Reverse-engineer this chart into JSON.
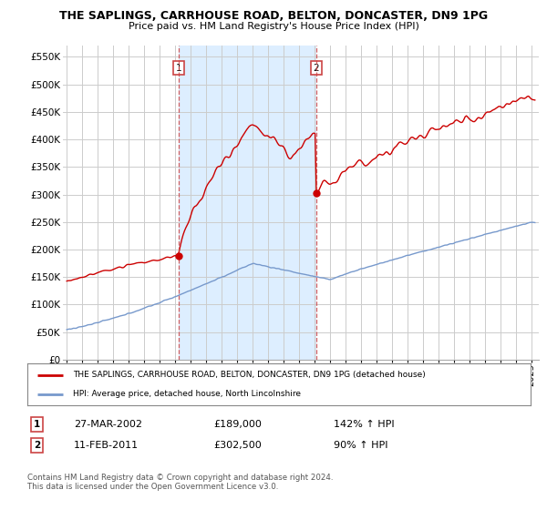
{
  "title": "THE SAPLINGS, CARRHOUSE ROAD, BELTON, DONCASTER, DN9 1PG",
  "subtitle": "Price paid vs. HM Land Registry's House Price Index (HPI)",
  "ylabel_ticks": [
    "£0",
    "£50K",
    "£100K",
    "£150K",
    "£200K",
    "£250K",
    "£300K",
    "£350K",
    "£400K",
    "£450K",
    "£500K",
    "£550K"
  ],
  "ytick_values": [
    0,
    50000,
    100000,
    150000,
    200000,
    250000,
    300000,
    350000,
    400000,
    450000,
    500000,
    550000
  ],
  "ylim": [
    0,
    570000
  ],
  "xlim_start": 1994.75,
  "xlim_end": 2025.5,
  "bg_color": "#ffffff",
  "highlight_color": "#ddeeff",
  "grid_color": "#cccccc",
  "sale1_t": 2002.21,
  "sale1_y": 189000,
  "sale1_label": "27-MAR-2002",
  "sale1_price": "£189,000",
  "sale1_hpi": "142% ↑ HPI",
  "sale2_t": 2011.12,
  "sale2_y": 302500,
  "sale2_label": "11-FEB-2011",
  "sale2_price": "£302,500",
  "sale2_hpi": "90% ↑ HPI",
  "legend_line1": "THE SAPLINGS, CARRHOUSE ROAD, BELTON, DONCASTER, DN9 1PG (detached house)",
  "legend_line2": "HPI: Average price, detached house, North Lincolnshire",
  "footer": "Contains HM Land Registry data © Crown copyright and database right 2024.\nThis data is licensed under the Open Government Licence v3.0.",
  "line_color_red": "#cc0000",
  "line_color_blue": "#7799cc",
  "vline_color": "#cc4444"
}
